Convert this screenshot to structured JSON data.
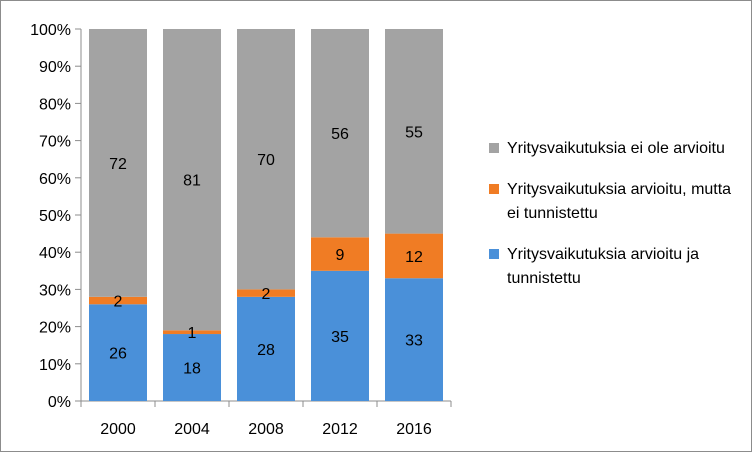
{
  "chart_data": {
    "type": "bar",
    "stacked": true,
    "normalized": true,
    "categories": [
      "2000",
      "2004",
      "2008",
      "2012",
      "2016"
    ],
    "series": [
      {
        "name": "Yritysvaikutuksia arvioitu ja tunnistettu",
        "color": "#4a90d9",
        "values": [
          26,
          18,
          28,
          35,
          33
        ]
      },
      {
        "name": "Yritysvaikutuksia arvioitu, mutta ei tunnistettu",
        "color": "#f07c24",
        "values": [
          2,
          1,
          2,
          9,
          12
        ]
      },
      {
        "name": "Yritysvaikutuksia ei ole arvioitu",
        "color": "#a3a3a3",
        "values": [
          72,
          81,
          70,
          56,
          55
        ]
      }
    ],
    "legend_order": [
      2,
      1,
      0
    ],
    "y_ticks": [
      "0%",
      "10%",
      "20%",
      "30%",
      "40%",
      "50%",
      "60%",
      "70%",
      "80%",
      "90%",
      "100%"
    ],
    "ylim": [
      0,
      100
    ],
    "legend_position": "right",
    "grid": false
  }
}
